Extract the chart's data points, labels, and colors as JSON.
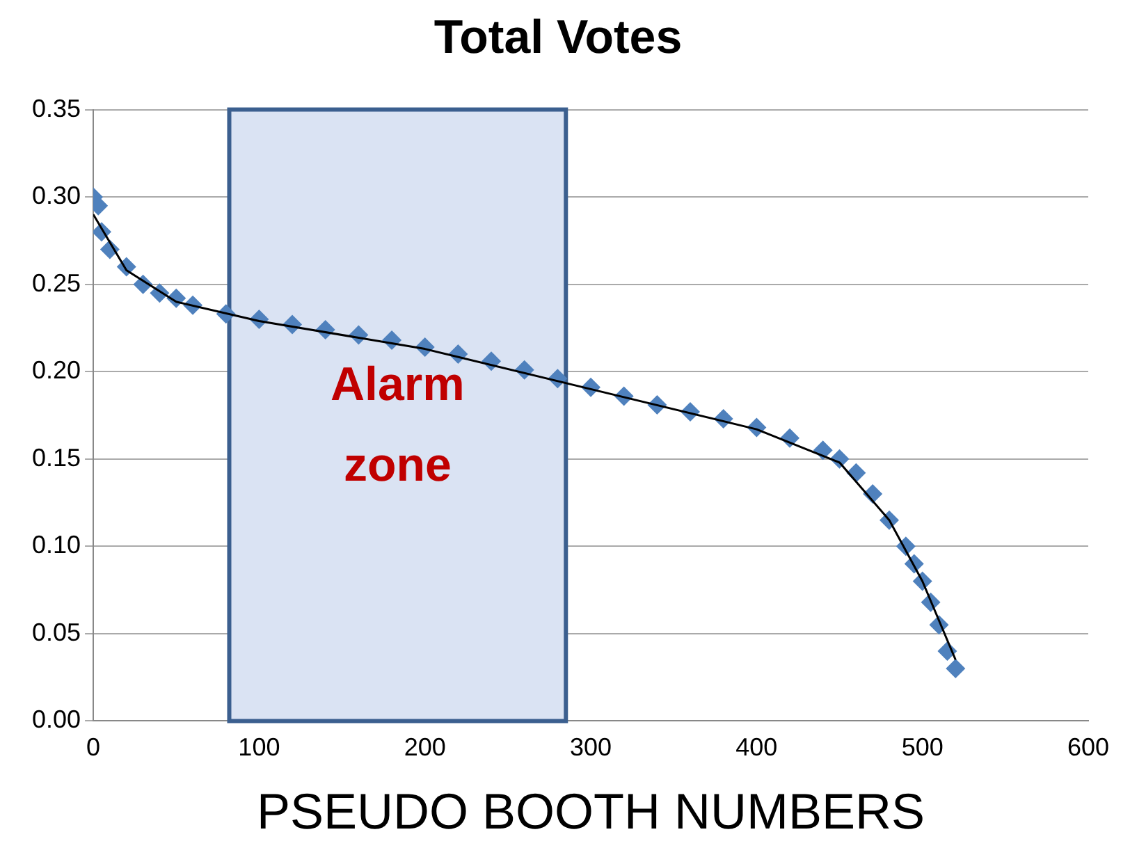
{
  "chart_data": {
    "type": "scatter",
    "title": "Total Votes",
    "xlabel": "PSEUDO BOOTH NUMBERS",
    "xlim": [
      0,
      600
    ],
    "xticks": [
      0,
      100,
      200,
      300,
      400,
      500,
      600
    ],
    "ylim": [
      0,
      0.35
    ],
    "yticks": [
      {
        "value": 0,
        "label": "0.00"
      },
      0.05,
      {
        "value": 0.1,
        "label": "0.10"
      },
      0.15,
      {
        "value": 0.2,
        "label": "0.20"
      },
      0.25,
      {
        "value": 0.3,
        "label": "0.30"
      },
      0.35
    ],
    "grid": "y",
    "legend": false,
    "marker": "diamond",
    "series": [
      {
        "color": "#4f81bd",
        "x": [
          0,
          3,
          5,
          10,
          20,
          30,
          40,
          50,
          60,
          80,
          100,
          120,
          140,
          160,
          180,
          200,
          220,
          240,
          260,
          280,
          300,
          320,
          340,
          360,
          380,
          400,
          420,
          440,
          450,
          460,
          470,
          480,
          490,
          495,
          500,
          505,
          510,
          515,
          520
        ],
        "values": [
          0.3,
          0.295,
          0.28,
          0.27,
          0.26,
          0.25,
          0.245,
          0.242,
          0.238,
          0.233,
          0.23,
          0.227,
          0.224,
          0.221,
          0.218,
          0.214,
          0.21,
          0.206,
          0.201,
          0.196,
          0.191,
          0.186,
          0.181,
          0.177,
          0.173,
          0.168,
          0.162,
          0.155,
          0.15,
          0.142,
          0.13,
          0.115,
          0.1,
          0.09,
          0.08,
          0.068,
          0.055,
          0.04,
          0.03
        ]
      },
      {
        "type": "line",
        "color": "#000000",
        "marker": "none",
        "x": [
          0,
          20,
          50,
          100,
          200,
          300,
          400,
          450,
          480,
          500,
          520
        ],
        "values": [
          0.29,
          0.258,
          0.24,
          0.229,
          0.213,
          0.19,
          0.167,
          0.148,
          0.115,
          0.08,
          0.035
        ]
      }
    ],
    "bands": [
      {
        "axis": "x",
        "from": 82,
        "to": 285,
        "label": "Alarm zone",
        "color": "#dae3f3"
      }
    ]
  }
}
